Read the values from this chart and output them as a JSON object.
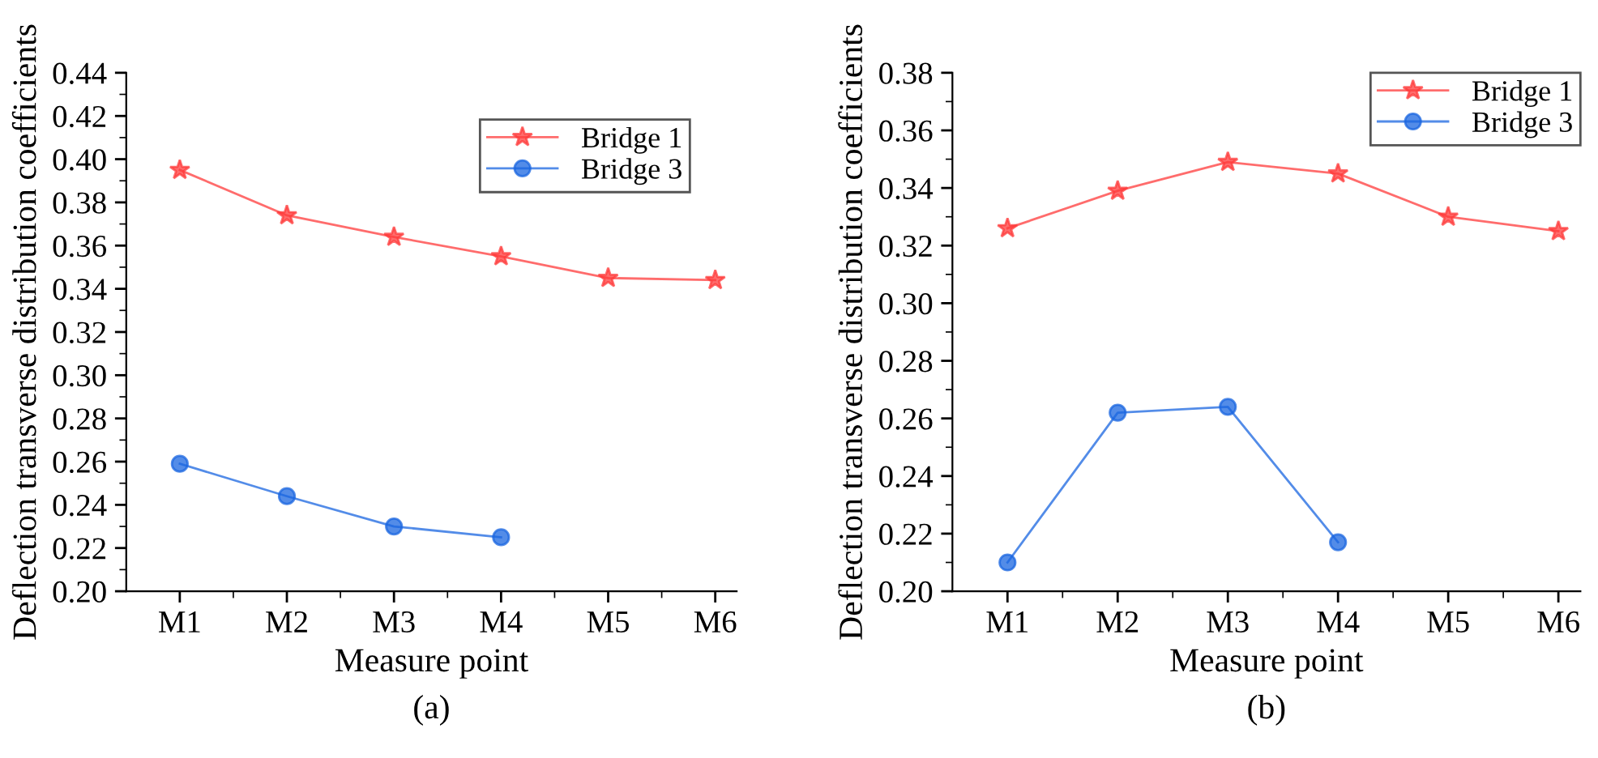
{
  "chart_data": [
    {
      "type": "line",
      "xlabel": "Measure point",
      "ylabel": "Deflection transverse distribution coefficients",
      "categories": [
        "M1",
        "M2",
        "M3",
        "M4",
        "M5",
        "M6"
      ],
      "ylim": [
        0.2,
        0.44
      ],
      "yticks": [
        {
          "value": 0.2,
          "label": "0.20"
        },
        {
          "value": 0.22,
          "label": "0.22"
        },
        {
          "value": 0.24,
          "label": "0.24"
        },
        {
          "value": 0.26,
          "label": "0.26"
        },
        {
          "value": 0.28,
          "label": "0.28"
        },
        {
          "value": 0.3,
          "label": "0.30"
        },
        {
          "value": 0.32,
          "label": "0.32"
        },
        {
          "value": 0.34,
          "label": "0.34"
        },
        {
          "value": 0.36,
          "label": "0.36"
        },
        {
          "value": 0.38,
          "label": "0.38"
        },
        {
          "value": 0.4,
          "label": "0.40"
        },
        {
          "value": 0.42,
          "label": "0.42"
        },
        {
          "value": 0.44,
          "label": "0.44"
        }
      ],
      "legend": "top right",
      "grid": false,
      "annotations": [
        "(a)"
      ],
      "series": [
        {
          "name": "Bridge 1",
          "color": "#ff3b3b",
          "marker": "star",
          "values": [
            0.395,
            0.374,
            0.364,
            0.355,
            0.345,
            0.344
          ]
        },
        {
          "name": "Bridge 3",
          "color": "#1a66e0",
          "marker": "circle",
          "values": [
            0.259,
            0.244,
            0.23,
            0.225,
            null,
            null
          ]
        }
      ]
    },
    {
      "type": "line",
      "xlabel": "Measure point",
      "ylabel": "Deflection transverse distribution coefficients",
      "categories": [
        "M1",
        "M2",
        "M3",
        "M4",
        "M5",
        "M6"
      ],
      "ylim": [
        0.2,
        0.38
      ],
      "yticks": [
        {
          "value": 0.2,
          "label": "0.20"
        },
        {
          "value": 0.22,
          "label": "0.22"
        },
        {
          "value": 0.24,
          "label": "0.24"
        },
        {
          "value": 0.26,
          "label": "0.26"
        },
        {
          "value": 0.28,
          "label": "0.28"
        },
        {
          "value": 0.3,
          "label": "0.30"
        },
        {
          "value": 0.32,
          "label": "0.32"
        },
        {
          "value": 0.34,
          "label": "0.34"
        },
        {
          "value": 0.36,
          "label": "0.36"
        },
        {
          "value": 0.38,
          "label": "0.38"
        }
      ],
      "legend": "top right",
      "grid": false,
      "annotations": [
        "(b)"
      ],
      "series": [
        {
          "name": "Bridge 1",
          "color": "#ff3b3b",
          "marker": "star",
          "values": [
            0.326,
            0.339,
            0.349,
            0.345,
            0.33,
            0.325
          ]
        },
        {
          "name": "Bridge 3",
          "color": "#1a66e0",
          "marker": "circle",
          "values": [
            0.21,
            0.262,
            0.264,
            0.217,
            null,
            null
          ]
        }
      ]
    }
  ]
}
